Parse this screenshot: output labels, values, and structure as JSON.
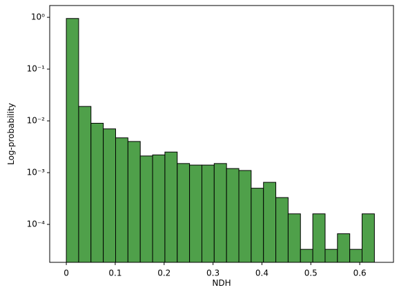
{
  "chart_data": {
    "type": "histogram",
    "x_label": "NDH",
    "y_label": "Log-probability",
    "bins": [
      0,
      0.0252,
      0.0504,
      0.0756,
      0.1008,
      0.126,
      0.1512,
      0.1764,
      0.2016,
      0.2268,
      0.252,
      0.2772,
      0.3024,
      0.3276,
      0.3528,
      0.378,
      0.4032,
      0.4284,
      0.4536,
      0.4788,
      0.504,
      0.5292,
      0.5544,
      0.5796,
      0.6048,
      0.63
    ],
    "values": [
      0.95,
      0.019,
      0.009,
      0.007,
      0.0047,
      0.004,
      0.0021,
      0.0022,
      0.0025,
      0.0015,
      0.0014,
      0.0014,
      0.0015,
      0.0012,
      0.0011,
      0.0005,
      0.00065,
      0.00033,
      0.00016,
      3.3e-05,
      0.00016,
      3.3e-05,
      6.6e-05,
      3.3e-05,
      0.00016
    ],
    "color": "#4fa04a",
    "edgecolor": "#000000",
    "xlim": [
      -0.034,
      0.669
    ],
    "xticks": [
      0.0,
      0.1,
      0.2,
      0.3,
      0.4,
      0.5,
      0.6
    ],
    "ylim": [
      1.85e-05,
      1.69
    ],
    "ylog": true,
    "yticks": [
      {
        "value": 0.0001,
        "label": "10⁻⁴"
      },
      {
        "value": 0.001,
        "label": "10⁻³"
      },
      {
        "value": 0.01,
        "label": "10⁻²"
      },
      {
        "value": 0.1,
        "label": "10⁻¹"
      },
      {
        "value": 1,
        "label": "10⁰"
      }
    ]
  }
}
